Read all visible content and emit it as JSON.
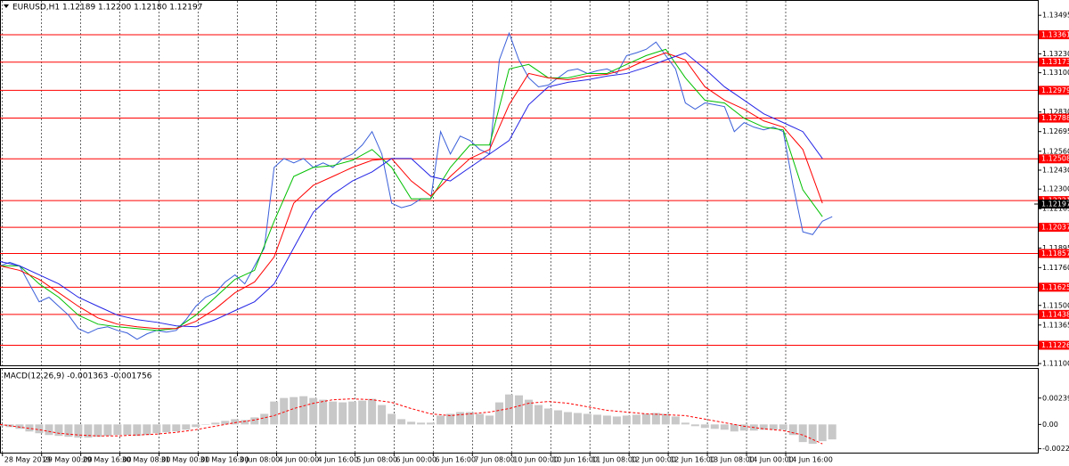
{
  "chart_data": [
    {
      "type": "line",
      "header": "EURUSD,H1  1.12189 1.12200 1.12180 1.12197",
      "xlim": [
        0,
        424
      ],
      "ylim": [
        1.11088,
        1.13594
      ],
      "yticks": [
        1.13495,
        {
          "value": 1.1323,
          "label": "1.13230"
        },
        {
          "value": 1.131,
          "label": "1.13100"
        },
        {
          "value": 1.1283,
          "label": "1.12830"
        },
        1.12695,
        {
          "value": 1.1256,
          "label": "1.12560"
        },
        {
          "value": 1.1243,
          "label": "1.12430"
        },
        {
          "value": 1.123,
          "label": "1.12300"
        },
        1.12165,
        1.11895,
        {
          "value": 1.1176,
          "label": "1.11760"
        },
        {
          "value": 1.115,
          "label": "1.11500"
        },
        1.11365,
        {
          "value": 1.111,
          "label": "1.11100"
        }
      ],
      "current_price": 1.12197,
      "levels": {
        "color": "#ff0000",
        "values": [
          1.13361,
          1.13173,
          1.12979,
          1.12788,
          1.12508,
          1.12221,
          1.12037,
          1.11857,
          1.11625,
          1.11438,
          1.11226
        ]
      },
      "series": [
        {
          "color": "#3a5fd9",
          "x": [
            0,
            4,
            8,
            12,
            16,
            20,
            24,
            28,
            32,
            36,
            40,
            44,
            48,
            52,
            56,
            60,
            64,
            68,
            72,
            76,
            80,
            84,
            88,
            92,
            96,
            100,
            104,
            108,
            112,
            116,
            120,
            124,
            128,
            132,
            136,
            140,
            144,
            148,
            152,
            156,
            160,
            164,
            168,
            172,
            176,
            180,
            184,
            188,
            192,
            196,
            200,
            204,
            208,
            212,
            216,
            220,
            224,
            228,
            232,
            236,
            240,
            244,
            248,
            252,
            256,
            260,
            264,
            268,
            272,
            276,
            280,
            284,
            288,
            292,
            296,
            300,
            304,
            308,
            312,
            316,
            320,
            324,
            328,
            332,
            336,
            340
          ],
          "values": [
            1.11772,
            1.11796,
            1.11772,
            1.11648,
            1.11525,
            1.11556,
            1.11494,
            1.11433,
            1.11341,
            1.1131,
            1.11341,
            1.11353,
            1.11328,
            1.1131,
            1.11267,
            1.11304,
            1.11328,
            1.11316,
            1.11328,
            1.11402,
            1.11494,
            1.11556,
            1.11587,
            1.11661,
            1.1171,
            1.11648,
            1.11772,
            1.11895,
            1.12449,
            1.1251,
            1.1248,
            1.1251,
            1.12449,
            1.1248,
            1.12449,
            1.1251,
            1.12541,
            1.12603,
            1.12695,
            1.12541,
            1.12203,
            1.12172,
            1.1219,
            1.12233,
            1.12233,
            1.12695,
            1.12541,
            1.12664,
            1.12634,
            1.12572,
            1.12541,
            1.13188,
            1.13372,
            1.13188,
            1.13065,
            1.13003,
            1.13015,
            1.13065,
            1.13114,
            1.13126,
            1.13095,
            1.13114,
            1.13126,
            1.13095,
            1.13218,
            1.13237,
            1.13261,
            1.13311,
            1.13218,
            1.13126,
            1.12892,
            1.12849,
            1.12892,
            1.1288,
            1.12867,
            1.12695,
            1.12757,
            1.12726,
            1.12707,
            1.12726,
            1.12695,
            1.12326,
            1.12006,
            1.11987,
            1.12079,
            1.1211
          ]
        },
        {
          "color": "#00c000",
          "x": [
            0,
            8,
            16,
            24,
            32,
            40,
            48,
            56,
            64,
            72,
            80,
            88,
            96,
            104,
            112,
            120,
            128,
            136,
            144,
            152,
            160,
            168,
            176,
            184,
            192,
            200,
            208,
            216,
            224,
            232,
            240,
            248,
            256,
            264,
            272,
            280,
            288,
            296,
            304,
            312,
            320,
            328,
            336
          ],
          "values": [
            1.11772,
            1.11772,
            1.11648,
            1.11556,
            1.11433,
            1.11371,
            1.11353,
            1.11341,
            1.11328,
            1.11341,
            1.11433,
            1.11556,
            1.11679,
            1.11741,
            1.12079,
            1.12387,
            1.12449,
            1.12461,
            1.12498,
            1.12572,
            1.12449,
            1.12233,
            1.12233,
            1.12449,
            1.12603,
            1.12603,
            1.13126,
            1.13157,
            1.13065,
            1.13065,
            1.13095,
            1.13095,
            1.13157,
            1.13218,
            1.13261,
            1.13065,
            1.12911,
            1.12892,
            1.12787,
            1.12726,
            1.12707,
            1.12295,
            1.1211
          ]
        },
        {
          "color": "#ff0000",
          "x": [
            0,
            8,
            16,
            24,
            32,
            40,
            48,
            56,
            64,
            72,
            80,
            88,
            96,
            104,
            112,
            120,
            128,
            136,
            144,
            152,
            160,
            168,
            176,
            184,
            192,
            200,
            208,
            216,
            224,
            232,
            240,
            248,
            256,
            264,
            272,
            280,
            288,
            296,
            304,
            312,
            320,
            328,
            336
          ],
          "values": [
            1.11772,
            1.11741,
            1.11679,
            1.11587,
            1.11494,
            1.11414,
            1.11371,
            1.11353,
            1.11341,
            1.11341,
            1.1139,
            1.11476,
            1.11587,
            1.11661,
            1.11833,
            1.12203,
            1.12326,
            1.12387,
            1.12449,
            1.12498,
            1.1251,
            1.12356,
            1.12252,
            1.12387,
            1.1251,
            1.12572,
            1.1288,
            1.13095,
            1.13065,
            1.13052,
            1.13077,
            1.13089,
            1.13126,
            1.13188,
            1.13237,
            1.13188,
            1.13003,
            1.12911,
            1.12849,
            1.12769,
            1.12726,
            1.12572,
            1.12203
          ]
        },
        {
          "color": "#2323e6",
          "x": [
            0,
            8,
            16,
            24,
            32,
            40,
            48,
            56,
            64,
            72,
            80,
            88,
            96,
            104,
            112,
            120,
            128,
            136,
            144,
            152,
            160,
            168,
            176,
            184,
            192,
            200,
            208,
            216,
            224,
            232,
            240,
            248,
            256,
            264,
            272,
            280,
            288,
            296,
            304,
            312,
            320,
            328,
            336
          ],
          "values": [
            1.11802,
            1.11772,
            1.1171,
            1.11648,
            1.11556,
            1.11494,
            1.11433,
            1.11402,
            1.11384,
            1.11359,
            1.11353,
            1.11402,
            1.11464,
            1.11525,
            1.11648,
            1.11895,
            1.12141,
            1.12264,
            1.12356,
            1.12418,
            1.1251,
            1.1251,
            1.12387,
            1.12356,
            1.12449,
            1.12541,
            1.12634,
            1.1288,
            1.13003,
            1.13034,
            1.13052,
            1.13077,
            1.13095,
            1.13138,
            1.13188,
            1.13237,
            1.13126,
            1.13003,
            1.12911,
            1.12818,
            1.12757,
            1.12695,
            1.1251
          ]
        }
      ]
    },
    {
      "type": "macd",
      "title": "MACD(12,26,9) -0.001363 -0.001756",
      "xlim": [
        0,
        424
      ],
      "ylim": [
        -0.00256,
        0.00504
      ],
      "yticks": [
        0.00239,
        {
          "value": 0,
          "label": "0.00"
        },
        -0.002205
      ],
      "xticks": [
        {
          "value": 1,
          "label": "28 May 2019"
        },
        {
          "value": 17,
          "label": "29 May 00:00"
        },
        {
          "value": 33,
          "label": "29 May 16:00"
        },
        {
          "value": 49,
          "label": "30 May 08:00"
        },
        {
          "value": 65,
          "label": "31 May 00:00"
        },
        {
          "value": 81,
          "label": "31 May 16:00"
        },
        {
          "value": 97,
          "label": "3 Jun 08:00"
        },
        {
          "value": 113,
          "label": "4 Jun 00:00"
        },
        {
          "value": 129,
          "label": "4 Jun 16:00"
        },
        {
          "value": 145,
          "label": "5 Jun 08:00"
        },
        {
          "value": 161,
          "label": "6 Jun 00:00"
        },
        {
          "value": 177,
          "label": "6 Jun 16:00"
        },
        {
          "value": 193,
          "label": "7 Jun 08:00"
        },
        {
          "value": 209,
          "label": "10 Jun 00:00"
        },
        {
          "value": 225,
          "label": "10 Jun 16:00"
        },
        {
          "value": 241,
          "label": "11 Jun 08:00"
        },
        {
          "value": 257,
          "label": "12 Jun 00:00"
        },
        {
          "value": 273,
          "label": "12 Jun 16:00"
        },
        {
          "value": 289,
          "label": "13 Jun 08:00"
        },
        {
          "value": 305,
          "label": "14 Jun 00:00"
        },
        {
          "value": 321,
          "label": "14 Jun 16:00"
        }
      ],
      "series": [
        {
          "type": "histogram",
          "color": "#c8c8c8",
          "x": [
            0,
            4,
            8,
            12,
            16,
            20,
            24,
            28,
            32,
            36,
            40,
            44,
            48,
            52,
            56,
            60,
            64,
            68,
            72,
            76,
            80,
            84,
            88,
            92,
            96,
            100,
            104,
            108,
            112,
            116,
            120,
            124,
            128,
            132,
            136,
            140,
            144,
            148,
            152,
            156,
            160,
            164,
            168,
            172,
            176,
            180,
            184,
            188,
            192,
            196,
            200,
            204,
            208,
            212,
            216,
            220,
            224,
            228,
            232,
            236,
            240,
            244,
            248,
            252,
            256,
            260,
            264,
            268,
            272,
            276,
            280,
            284,
            288,
            292,
            296,
            300,
            304,
            308,
            312,
            316,
            320,
            324,
            328,
            332,
            336,
            340
          ],
          "values": [
            -0.00016,
            -0.00024,
            -0.0004,
            -0.00064,
            -0.0008,
            -0.00096,
            -0.00104,
            -0.00112,
            -0.0012,
            -0.0012,
            -0.00112,
            -0.00104,
            -0.00096,
            -0.00096,
            -0.00104,
            -0.00096,
            -0.0008,
            -0.00072,
            -0.00064,
            -0.00048,
            -0.00024,
            0,
            0.00016,
            0.00032,
            0.00048,
            0.0004,
            0.00064,
            0.00096,
            0.00208,
            0.0024,
            0.00248,
            0.00256,
            0.0024,
            0.00224,
            0.00208,
            0.002,
            0.00208,
            0.00216,
            0.00232,
            0.00176,
            0.00096,
            0.00048,
            0.00024,
            0.00016,
            0.00016,
            0.0008,
            0.00096,
            0.00112,
            0.00112,
            0.00096,
            0.0008,
            0.002,
            0.00272,
            0.00264,
            0.00224,
            0.00176,
            0.00144,
            0.00128,
            0.00112,
            0.00104,
            0.00096,
            0.00088,
            0.0008,
            0.00072,
            0.0008,
            0.00088,
            0.00096,
            0.00104,
            0.00096,
            0.00072,
            0.00016,
            -0.00016,
            -0.00032,
            -0.0004,
            -0.00048,
            -0.00064,
            -0.00056,
            -0.00056,
            -0.00048,
            -0.00048,
            -0.00048,
            -0.00096,
            -0.0016,
            -0.00176,
            -0.00152,
            -0.00136
          ]
        },
        {
          "type": "line",
          "color": "#ff0000",
          "dashed": true,
          "x": [
            0,
            8,
            16,
            24,
            32,
            40,
            48,
            56,
            64,
            72,
            80,
            88,
            96,
            104,
            112,
            120,
            128,
            136,
            144,
            152,
            160,
            168,
            176,
            184,
            192,
            200,
            208,
            216,
            224,
            232,
            240,
            248,
            256,
            264,
            272,
            280,
            288,
            296,
            304,
            312,
            320,
            328,
            336
          ],
          "values": [
            0,
            -0.00024,
            -0.00048,
            -0.0008,
            -0.00096,
            -0.00104,
            -0.00104,
            -0.00096,
            -0.00088,
            -0.00072,
            -0.00048,
            -0.00016,
            0.00016,
            0.0004,
            0.0008,
            0.00144,
            0.00192,
            0.00224,
            0.00232,
            0.00224,
            0.002,
            0.00144,
            0.00096,
            0.0008,
            0.00096,
            0.00112,
            0.00144,
            0.00192,
            0.00208,
            0.00192,
            0.0016,
            0.00128,
            0.00112,
            0.00096,
            0.00088,
            0.0008,
            0.00048,
            0.00016,
            -0.00016,
            -0.0004,
            -0.00056,
            -0.00096,
            -0.00176
          ]
        }
      ]
    }
  ]
}
